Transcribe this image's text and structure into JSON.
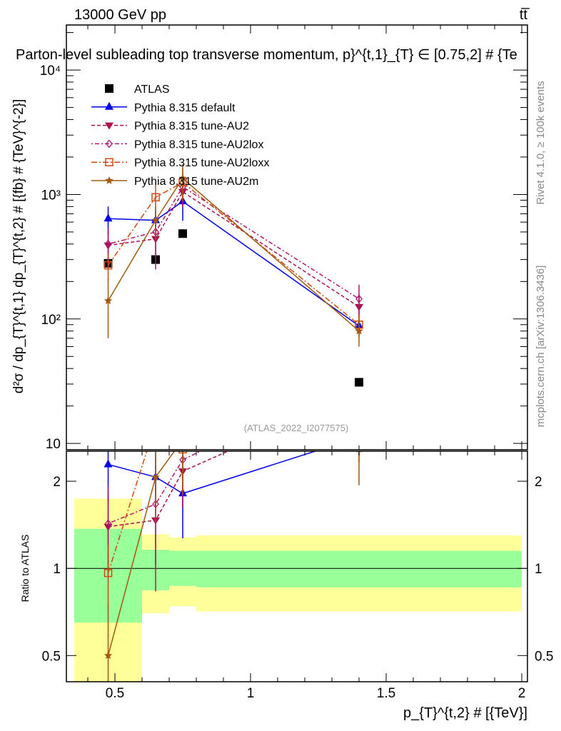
{
  "header": {
    "left": "13000 GeV pp",
    "right": "tt̅"
  },
  "side": {
    "rivet": "Rivet 4.1.0, ≥ 100k events",
    "mcplots": "mcplots.cern.ch [arXiv:1306.3436]"
  },
  "chart_data": {
    "type": "line",
    "title": "Parton-level subleading top transverse momentum, p}^{t,1}_{T} ∈ [0.75,2] # {Te",
    "watermark": "(ATLAS_2022_I2077575)",
    "xlabel": "p_{T}^{t,2} # [{TeV}]",
    "ylabel": "d²σ / dp_{T}^{t,1} dp_{T}^{t,2} # [{fb} # {TeV}^{-2}]",
    "ratio_ylabel": "Ratio to ATLAS",
    "xlim": [
      0.321,
      2.021
    ],
    "ylim": [
      8.9,
      23000
    ],
    "yscale": "log",
    "ratio_ylim": [
      0.406,
      2.54
    ],
    "x_ticks": [
      {
        "v": 0.5,
        "label": "0.5"
      },
      {
        "v": 1,
        "label": "1"
      },
      {
        "v": 1.5,
        "label": "1.5"
      },
      {
        "v": 2,
        "label": "2"
      }
    ],
    "y_ticks": [
      {
        "v": 10,
        "label": "10"
      },
      {
        "v": 100,
        "label": "10²"
      },
      {
        "v": 1000,
        "label": "10³"
      },
      {
        "v": 10000,
        "label": "10⁴"
      }
    ],
    "ratio_ticks": [
      {
        "v": 0.5,
        "label": "0.5"
      },
      {
        "v": 1,
        "label": "1"
      },
      {
        "v": 2,
        "label": "2"
      }
    ],
    "x": [
      0.475,
      0.65,
      0.75,
      1.4
    ],
    "bins": [
      [
        0.35,
        0.6
      ],
      [
        0.6,
        0.7
      ],
      [
        0.7,
        0.8
      ],
      [
        0.8,
        2.0
      ]
    ],
    "band_inner": [
      [
        0.65,
        1.37
      ],
      [
        0.84,
        1.16
      ],
      [
        0.87,
        1.15
      ],
      [
        0.86,
        1.15
      ]
    ],
    "band_outer": [
      [
        0.4,
        1.74
      ],
      [
        0.7,
        1.31
      ],
      [
        0.74,
        1.28
      ],
      [
        0.71,
        1.3
      ]
    ],
    "series": [
      {
        "name": "ATLAS",
        "values": [
          280,
          300,
          485,
          31
        ],
        "rel_err": [
          0,
          0,
          0,
          0
        ],
        "color": "#000000",
        "marker": "square",
        "dash": ""
      },
      {
        "name": "Pythia 8.315 default",
        "values": [
          640,
          620,
          880,
          88
        ],
        "rel_err": [
          0.25,
          0.1,
          0.3,
          0.1
        ],
        "color": "#0000ee",
        "marker": "triangle-up",
        "dash": ""
      },
      {
        "name": "Pythia 8.315 tune-AU2",
        "values": [
          390,
          440,
          1050,
          125
        ],
        "rel_err": [
          0.3,
          0.3,
          0.25,
          0.25
        ],
        "color": "#a8124e",
        "marker": "triangle-down",
        "dash": "5,3"
      },
      {
        "name": "Pythia 8.315 tune-AU2lox",
        "values": [
          400,
          500,
          1150,
          145
        ],
        "rel_err": [
          0.35,
          0.5,
          0.3,
          0.3
        ],
        "color": "#b0146e",
        "marker": "diamond-open",
        "dash": "2,3,6,3"
      },
      {
        "name": "Pythia 8.315 tune-AU2loxx",
        "values": [
          270,
          950,
          1250,
          90
        ],
        "rel_err": [
          0.25,
          0.3,
          0.3,
          0.2
        ],
        "color": "#cc4a10",
        "marker": "square-open",
        "dash": "8,3,2,3"
      },
      {
        "name": "Pythia 8.315 tune-AU2m",
        "values": [
          140,
          620,
          1350,
          80
        ],
        "rel_err": [
          0.5,
          0.3,
          0.3,
          0.25
        ],
        "color": "#a05a10",
        "marker": "star",
        "dash": ""
      }
    ]
  }
}
